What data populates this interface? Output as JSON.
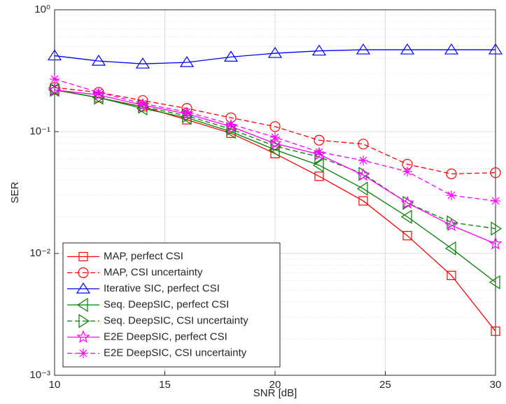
{
  "chart_data": {
    "type": "line",
    "x_label": "SNR [dB]",
    "y_label": "SER",
    "x": [
      10,
      12,
      14,
      16,
      18,
      20,
      22,
      24,
      26,
      28,
      30
    ],
    "xlim": [
      10,
      30
    ],
    "xticks": [
      10,
      15,
      20,
      25,
      30
    ],
    "ylim": [
      0.001,
      1
    ],
    "log_y": true,
    "grid": true,
    "minor_grid": true,
    "yticks": [
      {
        "value": 0.001,
        "label": "10⁻³"
      },
      {
        "value": 0.01,
        "label": "10⁻²"
      },
      {
        "value": 0.1,
        "label": "10⁻¹"
      },
      {
        "value": 1,
        "label": "10⁰"
      }
    ],
    "legend": "lower left",
    "series": [
      {
        "name": "MAP, perfect CSI",
        "color": "#ff0000",
        "marker": "square",
        "dashed": false,
        "values": [
          0.22,
          0.19,
          0.16,
          0.125,
          0.097,
          0.066,
          0.043,
          0.027,
          0.014,
          0.0066,
          0.0023
        ]
      },
      {
        "name": "MAP, CSI uncertainty",
        "color": "#ff0000",
        "marker": "circle",
        "dashed": true,
        "values": [
          0.23,
          0.21,
          0.18,
          0.155,
          0.13,
          0.11,
          0.085,
          0.079,
          0.054,
          0.045,
          0.046
        ]
      },
      {
        "name": "Iterative SIC, perfect CSI",
        "color": "#0000ff",
        "marker": "triangle-up",
        "dashed": false,
        "values": [
          0.42,
          0.38,
          0.36,
          0.37,
          0.41,
          0.44,
          0.46,
          0.47,
          0.47,
          0.47,
          0.47
        ]
      },
      {
        "name": "Seq. DeepSIC, perfect CSI",
        "color": "#008000",
        "marker": "triangle-left",
        "dashed": false,
        "values": [
          0.22,
          0.19,
          0.155,
          0.13,
          0.1,
          0.071,
          0.053,
          0.034,
          0.02,
          0.011,
          0.0058
        ]
      },
      {
        "name": "Seq. DeepSIC, CSI uncertainty",
        "color": "#008000",
        "marker": "triangle-right",
        "dashed": true,
        "values": [
          0.22,
          0.19,
          0.16,
          0.135,
          0.105,
          0.076,
          0.062,
          0.045,
          0.026,
          0.018,
          0.016
        ]
      },
      {
        "name": "E2E DeepSIC, perfect CSI",
        "color": "#ff00ff",
        "marker": "pentagram",
        "dashed": false,
        "values": [
          0.22,
          0.2,
          0.165,
          0.14,
          0.11,
          0.08,
          0.065,
          0.044,
          0.026,
          0.017,
          0.012
        ]
      },
      {
        "name": "E2E DeepSIC, CSI uncertainty",
        "color": "#ff00ff",
        "marker": "asterisk",
        "dashed": true,
        "values": [
          0.27,
          0.21,
          0.17,
          0.145,
          0.115,
          0.09,
          0.068,
          0.058,
          0.047,
          0.03,
          0.027
        ]
      }
    ]
  }
}
